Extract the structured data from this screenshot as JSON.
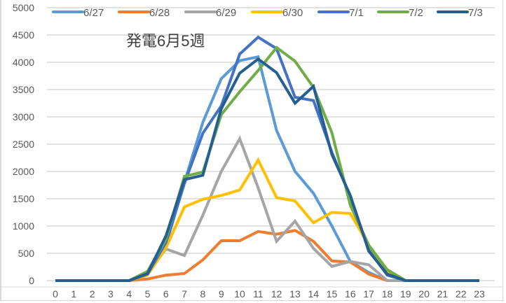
{
  "chart_data": {
    "type": "line",
    "title": "発電6月5週",
    "xlabel": "",
    "ylabel": "",
    "x": [
      0,
      1,
      2,
      3,
      4,
      5,
      6,
      7,
      8,
      9,
      10,
      11,
      12,
      13,
      14,
      15,
      16,
      17,
      18,
      19,
      20,
      21,
      22,
      23
    ],
    "ylim": [
      0,
      5000
    ],
    "yticks": [
      0,
      500,
      1000,
      1500,
      2000,
      2500,
      3000,
      3500,
      4000,
      4500,
      5000
    ],
    "grid": true,
    "legend_position": "top",
    "series": [
      {
        "name": "6/27",
        "color": "#5B9BD5",
        "values": [
          0,
          0,
          0,
          0,
          0,
          150,
          650,
          1800,
          2900,
          3700,
          4030,
          4100,
          2750,
          2000,
          1600,
          1000,
          350,
          150,
          0,
          0,
          0,
          0,
          0,
          0
        ]
      },
      {
        "name": "6/28",
        "color": "#ED7D31",
        "values": [
          0,
          0,
          0,
          0,
          0,
          30,
          100,
          130,
          380,
          730,
          730,
          900,
          850,
          920,
          720,
          360,
          340,
          120,
          0,
          0,
          0,
          0,
          0,
          0
        ]
      },
      {
        "name": "6/29",
        "color": "#A5A5A5",
        "values": [
          0,
          0,
          0,
          0,
          0,
          130,
          580,
          460,
          1200,
          2000,
          2600,
          1700,
          720,
          1090,
          590,
          260,
          350,
          290,
          0,
          0,
          0,
          0,
          0,
          0
        ]
      },
      {
        "name": "6/30",
        "color": "#FFC000",
        "values": [
          0,
          0,
          0,
          0,
          0,
          100,
          600,
          1350,
          1490,
          1560,
          1660,
          2210,
          1520,
          1460,
          1060,
          1250,
          1230,
          650,
          150,
          0,
          0,
          0,
          0,
          0
        ]
      },
      {
        "name": "7/1",
        "color": "#4472C4",
        "values": [
          0,
          0,
          0,
          0,
          0,
          120,
          700,
          1780,
          2700,
          3200,
          4150,
          4460,
          4250,
          3360,
          3300,
          2350,
          1530,
          560,
          100,
          0,
          0,
          0,
          0,
          0
        ]
      },
      {
        "name": "7/2",
        "color": "#70AD47",
        "values": [
          0,
          0,
          0,
          0,
          0,
          170,
          760,
          1910,
          1990,
          3040,
          3460,
          3850,
          4270,
          4020,
          3540,
          2710,
          1380,
          650,
          200,
          0,
          0,
          0,
          0,
          0
        ]
      },
      {
        "name": "7/3",
        "color": "#255E91",
        "values": [
          0,
          0,
          0,
          0,
          0,
          130,
          820,
          1850,
          1930,
          3150,
          3800,
          4060,
          3810,
          3250,
          3560,
          2310,
          1560,
          540,
          120,
          0,
          0,
          0,
          0,
          0
        ]
      }
    ]
  }
}
